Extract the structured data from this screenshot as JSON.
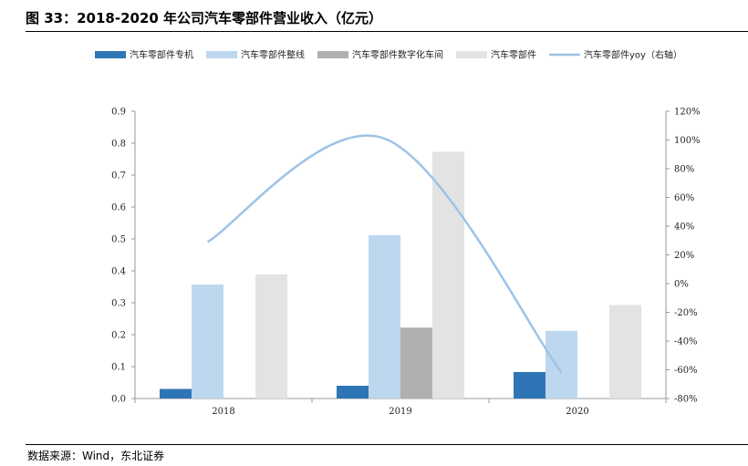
{
  "title": "图 33：2018-2020 年公司汽车零部件营业收入（亿元）",
  "source": "数据来源：Wind，东北证券",
  "chart_data": {
    "type": "bar",
    "categories": [
      "2018",
      "2019",
      "2020"
    ],
    "series": [
      {
        "name": "汽车零部件专机",
        "kind": "bar",
        "color": "#2e75b6",
        "values": [
          0.03,
          0.04,
          0.083
        ]
      },
      {
        "name": "汽车零部件整线",
        "kind": "bar",
        "color": "#bdd7ee",
        "values": [
          0.357,
          0.512,
          0.212
        ]
      },
      {
        "name": "汽车零部件数字化车间",
        "kind": "bar",
        "color": "#b0b0b0",
        "values": [
          null,
          0.222,
          null
        ]
      },
      {
        "name": "汽车零部件",
        "kind": "bar",
        "color": "#e3e3e3",
        "values": [
          0.389,
          0.773,
          0.293
        ]
      },
      {
        "name": "汽车零部件yoy（右轴）",
        "kind": "line",
        "axis": "right",
        "color": "#9dc3e6",
        "values": [
          0.29,
          1.01,
          -0.62
        ]
      }
    ],
    "y_left": {
      "min": 0,
      "max": 0.9,
      "ticks": [
        "0.0",
        "0.1",
        "0.2",
        "0.3",
        "0.4",
        "0.5",
        "0.6",
        "0.7",
        "0.8",
        "0.9"
      ]
    },
    "y_right": {
      "min": -0.8,
      "max": 1.2,
      "ticks": [
        "-80%",
        "-60%",
        "-40%",
        "-20%",
        "0%",
        "20%",
        "40%",
        "60%",
        "80%",
        "100%",
        "120%"
      ]
    },
    "grid": false,
    "legend": "top"
  }
}
